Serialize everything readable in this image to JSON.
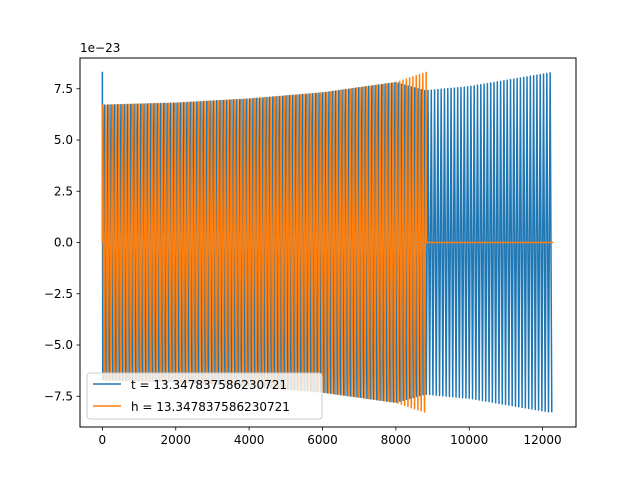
{
  "chart_data": {
    "type": "line",
    "title": "",
    "xlabel": "",
    "ylabel": "",
    "y_offset_label": "1e−23",
    "xlim": [
      -610,
      12910
    ],
    "ylim": [
      -9.0,
      9.0
    ],
    "grid": false,
    "legend_position": "lower-left",
    "x_ticks": [
      0,
      2000,
      4000,
      6000,
      8000,
      10000,
      12000
    ],
    "x_tick_labels": [
      "0",
      "2000",
      "4000",
      "6000",
      "8000",
      "10000",
      "12000"
    ],
    "y_ticks": [
      -7.5,
      -5.0,
      -2.5,
      0.0,
      2.5,
      5.0,
      7.5
    ],
    "y_tick_labels": [
      "−7.5",
      "−5.0",
      "−2.5",
      "0.0",
      "2.5",
      "5.0",
      "7.5"
    ],
    "series": [
      {
        "name": "t = 13.347837586230721",
        "color": "#1f77b4",
        "x_start": 0,
        "x_end": 12290,
        "initial_spike": 8.3,
        "envelope": {
          "x": [
            0,
            2000,
            4000,
            6000,
            8000,
            8800,
            10000,
            12290
          ],
          "amplitude": [
            6.7,
            6.8,
            7.0,
            7.3,
            7.8,
            7.4,
            7.6,
            8.3
          ]
        }
      },
      {
        "name": "h = 13.347837586230721",
        "color": "#ff7f0e",
        "x_start": 0,
        "x_end": 12290,
        "signal_end": 8830,
        "envelope": {
          "x": [
            0,
            2000,
            4000,
            6000,
            8000,
            8830
          ],
          "amplitude": [
            6.7,
            6.8,
            7.0,
            7.3,
            7.8,
            8.3
          ]
        },
        "after_end_value": 0.0
      }
    ]
  }
}
